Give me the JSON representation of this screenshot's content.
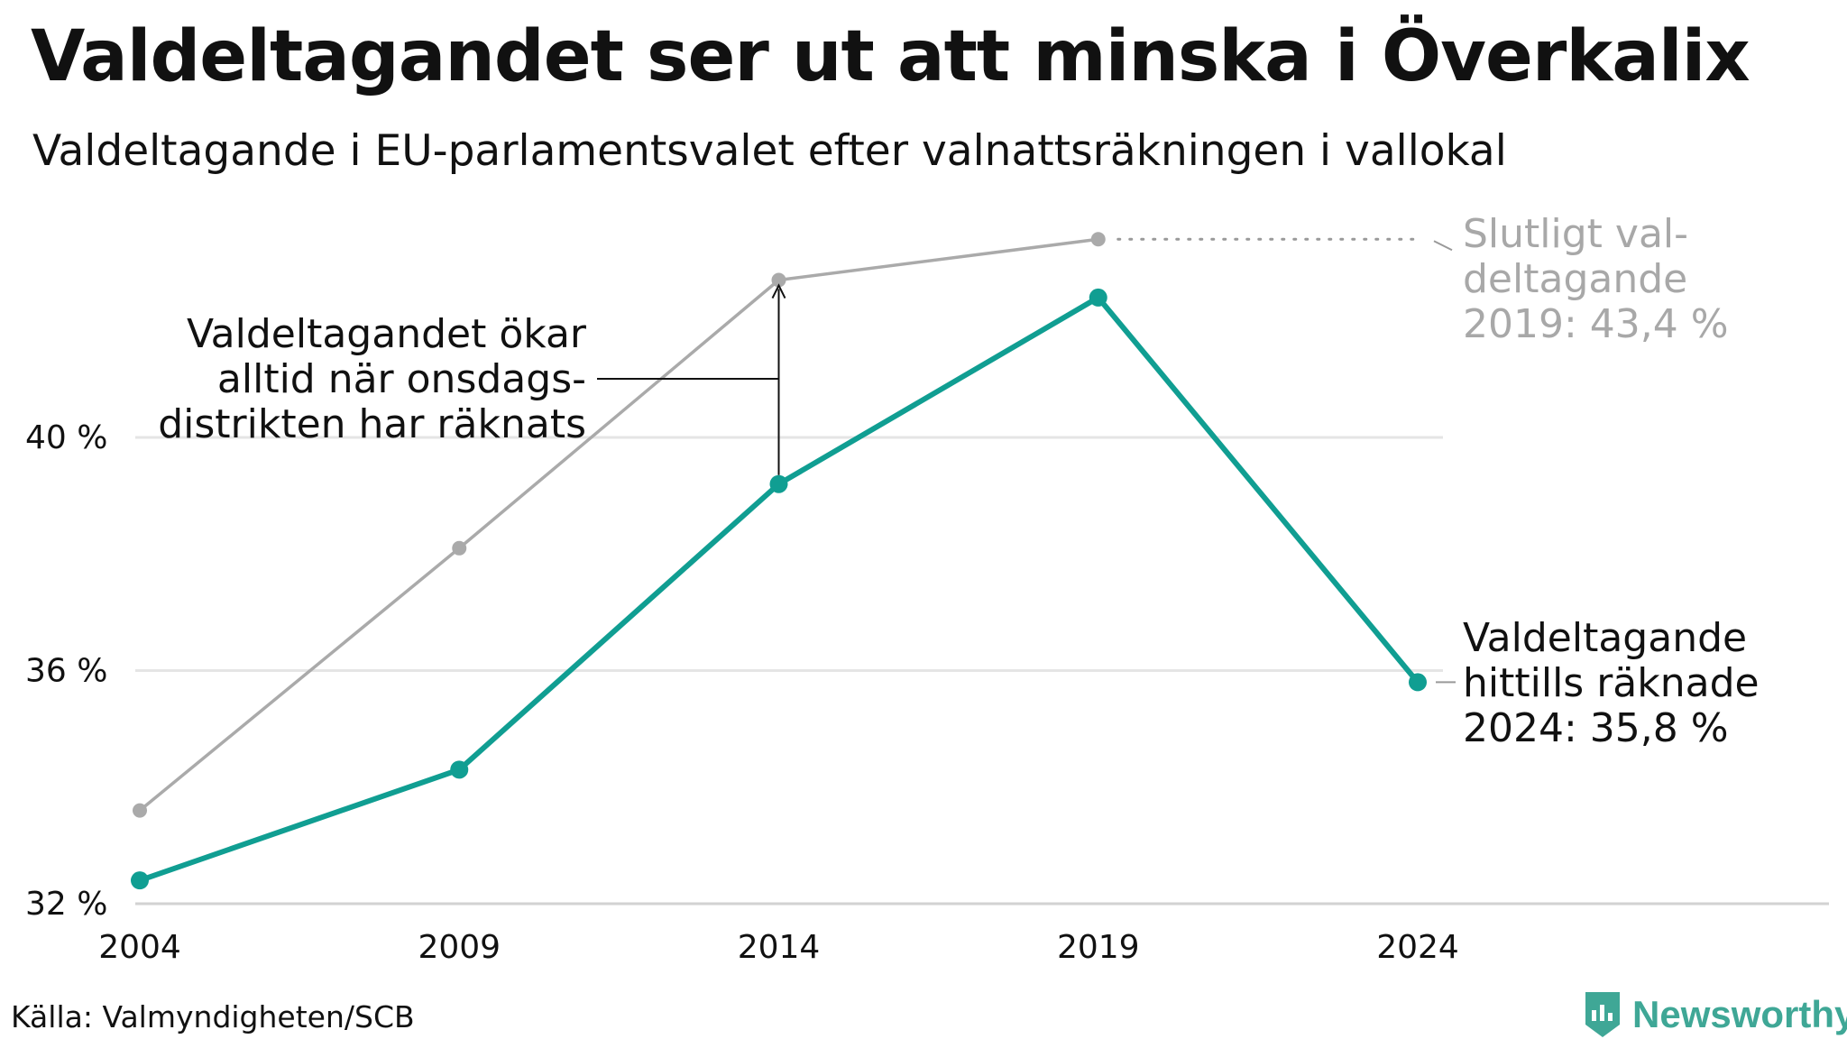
{
  "title": "Valdeltagandet ser ut att minska i Överkalix",
  "subtitle": "Valdeltagande i EU-parlamentsvalet efter valnattsräkningen i vallokal",
  "source": "Källa: Valmyndigheten/SCB",
  "brand": "Newsworthy",
  "colors": {
    "teal": "#109e92",
    "grey": "#aaaaaa",
    "grid": "#e5e5e5",
    "brand": "#3fa796"
  },
  "chart_data": {
    "type": "line",
    "x": [
      2004,
      2009,
      2014,
      2019,
      2024
    ],
    "ylim": [
      32,
      44.5
    ],
    "yticks": [
      32,
      36,
      40
    ],
    "ytick_labels": [
      "32 %",
      "36 %",
      "40 %"
    ],
    "xtick_labels": [
      "2004",
      "2009",
      "2014",
      "2019",
      "2024"
    ],
    "grid": true,
    "series": [
      {
        "key": "final",
        "color": "#aaaaaa",
        "values": [
          33.6,
          38.1,
          42.7,
          43.4,
          null
        ]
      },
      {
        "key": "preliminary",
        "color": "#109e92",
        "values": [
          32.4,
          34.3,
          39.2,
          42.4,
          35.8
        ]
      }
    ],
    "annotations": {
      "left": [
        "Valdeltagandet ökar",
        "alltid när onsdags-",
        "distrikten har räknats"
      ],
      "final": [
        "Slutligt val-",
        "deltagande",
        "2019: 43,4 %"
      ],
      "current": [
        "Valdeltagande",
        "hittills räknade",
        "2024: 35,8 %"
      ]
    }
  }
}
